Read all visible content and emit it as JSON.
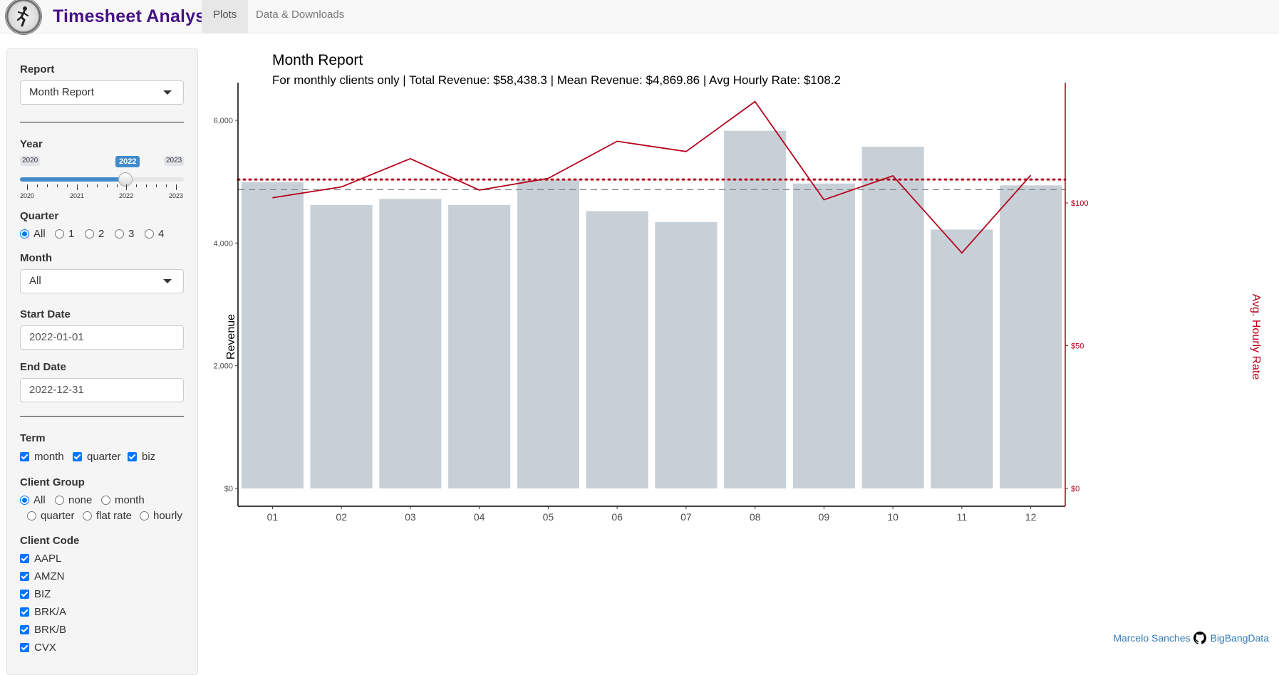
{
  "app": {
    "title": "Timesheet Analysis",
    "tabs": [
      {
        "label": "Plots",
        "active": true
      },
      {
        "label": "Data & Downloads",
        "active": false
      }
    ]
  },
  "sidebar": {
    "report": {
      "label": "Report",
      "value": "Month Report"
    },
    "year": {
      "label": "Year",
      "min": "2020",
      "max": "2023",
      "value": "2022",
      "ticks": [
        "2020",
        "2021",
        "2022",
        "2023"
      ]
    },
    "quarter": {
      "label": "Quarter",
      "options": [
        "All",
        "1",
        "2",
        "3",
        "4"
      ],
      "selected": "All"
    },
    "month": {
      "label": "Month",
      "value": "All"
    },
    "start_date": {
      "label": "Start Date",
      "value": "2022-01-01"
    },
    "end_date": {
      "label": "End Date",
      "value": "2022-12-31"
    },
    "term": {
      "label": "Term",
      "options": [
        "month",
        "quarter",
        "biz"
      ]
    },
    "client_group": {
      "label": "Client Group",
      "options": [
        "All",
        "none",
        "month",
        "quarter",
        "flat rate",
        "hourly"
      ],
      "selected": "All"
    },
    "client_code": {
      "label": "Client Code",
      "options": [
        "AAPL",
        "AMZN",
        "BIZ",
        "BRK/A",
        "BRK/B",
        "CVX"
      ]
    }
  },
  "footer": {
    "author": "Marcelo Sanches",
    "org": "BigBangData"
  },
  "colors": {
    "bar": "#c8d0d7",
    "line": "#b5001b",
    "mean_dash": "#808080",
    "brand": "#461185",
    "accent": "#0075ff"
  },
  "chart_data": {
    "type": "bar",
    "title": "Month Report",
    "subtitle": "For monthly clients only | Total Revenue: $58,438.3 | Mean Revenue: $4,869.86 | Avg Hourly Rate: $108.2",
    "categories": [
      "01",
      "02",
      "03",
      "04",
      "05",
      "06",
      "07",
      "08",
      "09",
      "10",
      "11",
      "12"
    ],
    "series": [
      {
        "axis": "left",
        "kind": "bar",
        "values": [
          4990,
          4620,
          4720,
          4620,
          5030,
          4520,
          4340,
          5830,
          4970,
          5570,
          4220,
          4940
        ]
      },
      {
        "axis": "right",
        "kind": "line",
        "values": [
          101.8,
          105.6,
          115.5,
          104.5,
          108.6,
          121.6,
          118.0,
          135.5,
          101.1,
          109.5,
          82.5,
          109.7
        ]
      }
    ],
    "ylabel": "Revenue",
    "y2label": "Avg. Hourly Rate",
    "ylim": [
      0,
      6100
    ],
    "y2lim": [
      0,
      145
    ],
    "yticks": [
      "$0",
      "$2,000",
      "$4,000",
      "$6,000"
    ],
    "y2ticks": [
      "$0",
      "$50",
      "$100"
    ],
    "mean_revenue": 4869.86,
    "avg_hourly_rate": 108.2,
    "grid": false
  }
}
